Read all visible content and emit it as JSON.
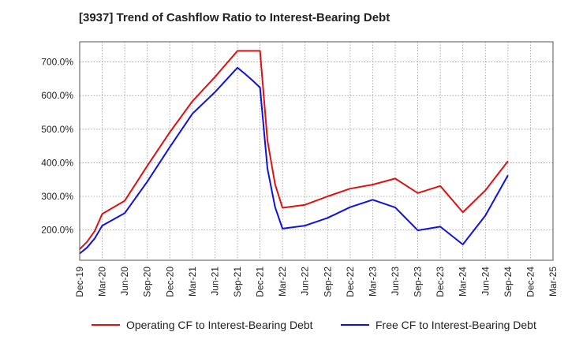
{
  "chart_data": {
    "type": "line",
    "title": "[3937]  Trend of Cashflow Ratio to Interest-Bearing Debt",
    "xlabel": "",
    "ylabel": "",
    "ylim": [
      110,
      760
    ],
    "yticks": [
      200,
      300,
      400,
      500,
      600,
      700
    ],
    "ytick_labels": [
      "200.0%",
      "300.0%",
      "400.0%",
      "500.0%",
      "600.0%",
      "700.0%"
    ],
    "xticks": [
      "Dec-19",
      "Mar-20",
      "Jun-20",
      "Sep-20",
      "Dec-20",
      "Mar-21",
      "Jun-21",
      "Sep-21",
      "Dec-21",
      "Mar-22",
      "Jun-22",
      "Sep-22",
      "Dec-22",
      "Mar-23",
      "Jun-23",
      "Sep-23",
      "Dec-23",
      "Mar-24",
      "Jun-24",
      "Sep-24",
      "Dec-24",
      "Mar-25"
    ],
    "grid": true,
    "legend_position": "bottom",
    "x": [
      0,
      0.33,
      0.67,
      1,
      2,
      3,
      4,
      5,
      6,
      7,
      7.33,
      7.67,
      8,
      8.33,
      8.67,
      9,
      10,
      11,
      12,
      13,
      14,
      15,
      16,
      17,
      18,
      19
    ],
    "series": [
      {
        "name": "Operating CF to Interest-Bearing Debt",
        "color": "#dd1111",
        "values": [
          143,
          165,
          197,
          248,
          287,
          391,
          491,
          583,
          655,
          733,
          733,
          733,
          733,
          467,
          336,
          266,
          275,
          300,
          323,
          335,
          353,
          310,
          331,
          253,
          318,
          405
        ]
      },
      {
        "name": "Free CF to Interest-Bearing Debt",
        "color": "#1111dd",
        "values": [
          130,
          148,
          175,
          213,
          250,
          344,
          447,
          546,
          610,
          683,
          665,
          645,
          624,
          383,
          268,
          204,
          213,
          236,
          268,
          290,
          267,
          199,
          210,
          157,
          243,
          363
        ]
      }
    ]
  }
}
